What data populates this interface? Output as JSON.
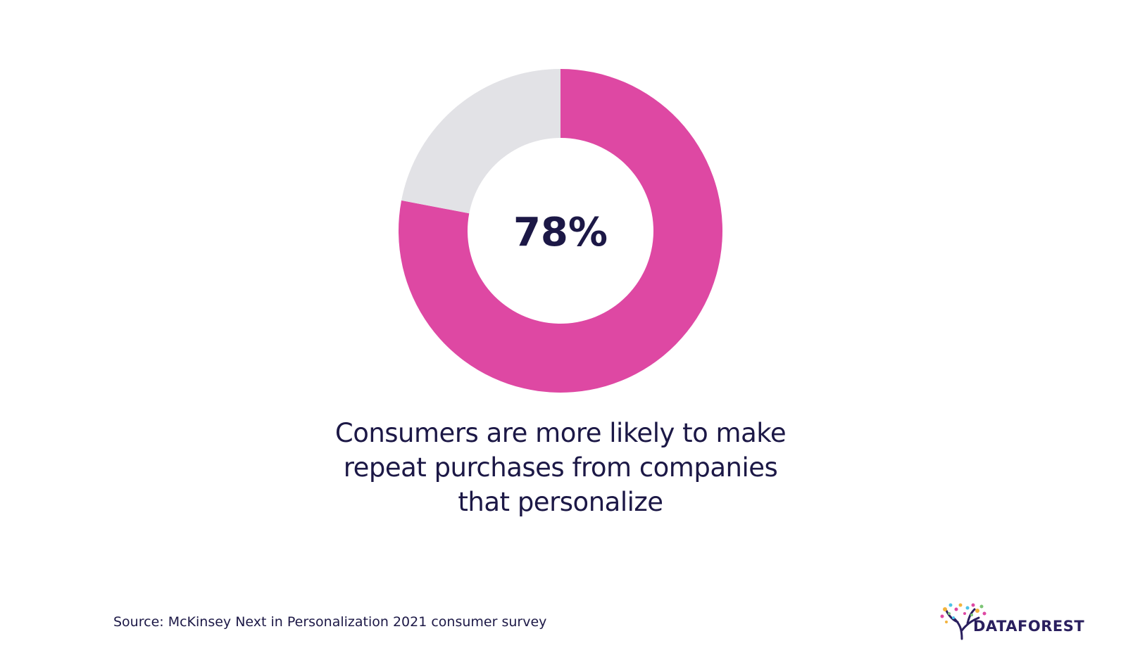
{
  "chart_data": {
    "type": "pie",
    "style": "donut",
    "slices": [
      {
        "label": "",
        "value": 78,
        "color": "#de48a3"
      },
      {
        "label": "",
        "value": 22,
        "color": "#e2e2e6"
      }
    ],
    "center_label": "78%",
    "caption_lines": [
      "Consumers are more likely to make",
      "repeat purchases from companies",
      "that personalize"
    ]
  },
  "source": "Source: McKinsey Next in Personalization 2021 consumer survey",
  "logo": {
    "text": "DATAFOREST",
    "icon": "tree-icon"
  },
  "colors": {
    "accent": "#de48a3",
    "remainder": "#e2e2e6",
    "text": "#1c1846"
  }
}
